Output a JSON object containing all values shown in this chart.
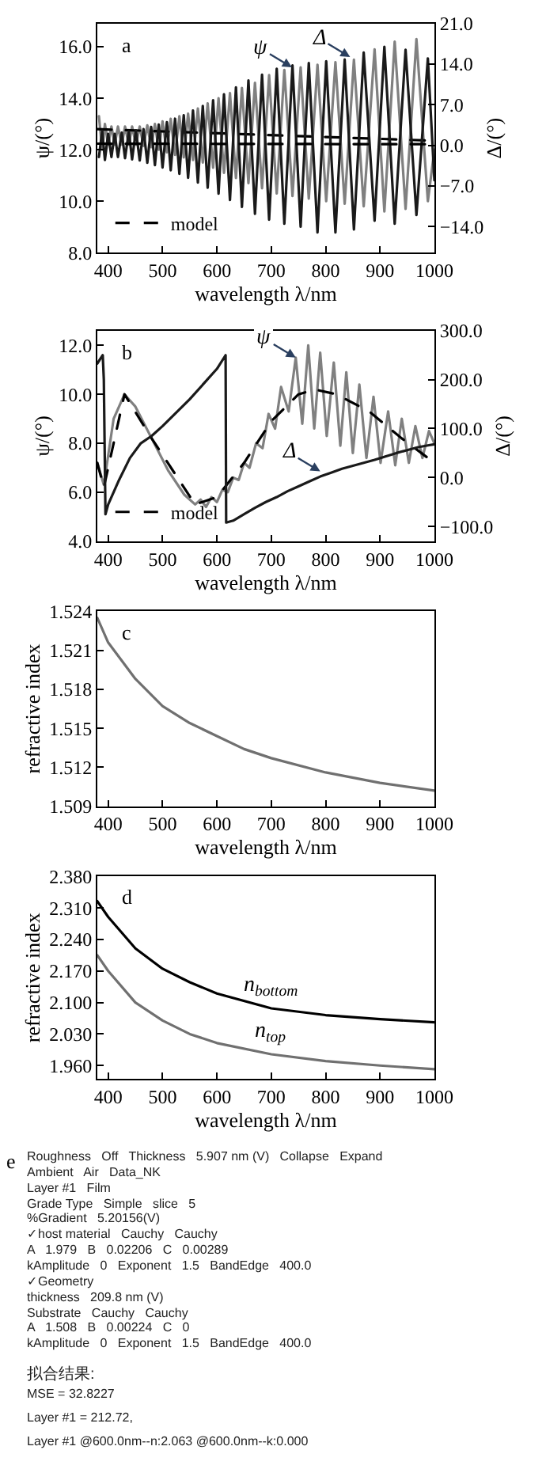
{
  "chart_data": [
    {
      "type": "line",
      "title": "a",
      "xlabel": "wavelength λ/nm",
      "ylabel": "ψ/(°)",
      "y2label": "Δ/(°)",
      "legend": "bottom left",
      "xlim": [
        380,
        1000
      ],
      "xticks": [
        400,
        500,
        600,
        700,
        800,
        900,
        1000
      ],
      "ylim": [
        8,
        16.9
      ],
      "yticks": [
        {
          "value": 8,
          "label": "8.0"
        },
        {
          "value": 10,
          "label": "10.0"
        },
        {
          "value": 12,
          "label": "12.0"
        },
        {
          "value": 14,
          "label": "14.0"
        },
        {
          "value": 16,
          "label": "16.0"
        }
      ],
      "y2lim": [
        -18.5,
        21
      ],
      "y2ticks": [
        {
          "value": -14,
          "label": "−14.0"
        },
        {
          "value": -7,
          "label": "−7.0"
        },
        {
          "value": 0,
          "label": "0.0"
        },
        {
          "value": 7,
          "label": "7.0"
        },
        {
          "value": 14,
          "label": "14.0"
        },
        {
          "value": 21,
          "label": "21.0"
        }
      ],
      "annotations": [
        {
          "text": "ψ",
          "x": 738,
          "y": 15.2
        },
        {
          "text": "Δ",
          "x": 845,
          "y": 15.6
        }
      ],
      "series": [
        {
          "color": "#808080",
          "line_style": "solid",
          "x": [
            383,
            389,
            394,
            400,
            406,
            412,
            418,
            425,
            431,
            438,
            444,
            451,
            458,
            465,
            472,
            479,
            486,
            493,
            500,
            508,
            515,
            523,
            531,
            539,
            547,
            556,
            565,
            574,
            583,
            593,
            603,
            613,
            624,
            635,
            646,
            658,
            670,
            683,
            696,
            710,
            724,
            739,
            754,
            769,
            785,
            801,
            818,
            835,
            852,
            870,
            890,
            908,
            927,
            947,
            967,
            988,
            1000
          ],
          "values": [
            13.3,
            12.0,
            13.0,
            12.2,
            12.9,
            12.2,
            12.9,
            12.2,
            12.9,
            12.2,
            12.9,
            12.2,
            12.9,
            12.15,
            12.95,
            12.1,
            13.0,
            12.0,
            13.1,
            11.9,
            13.2,
            11.8,
            13.3,
            11.7,
            13.4,
            11.6,
            13.6,
            11.5,
            13.8,
            11.3,
            14.0,
            11.1,
            14.2,
            10.9,
            14.4,
            10.7,
            14.6,
            10.5,
            14.9,
            10.3,
            15.1,
            10.2,
            15.2,
            10.1,
            15.3,
            10.0,
            15.4,
            9.9,
            15.5,
            9.8,
            15.9,
            9.6,
            16.2,
            9.7,
            16.3,
            10.0,
            12.0
          ]
        },
        {
          "color": "#1a1a1a",
          "line_style": "solid",
          "axis": "y2",
          "x": [
            383,
            389,
            394,
            400,
            406,
            412,
            418,
            425,
            431,
            438,
            444,
            451,
            458,
            465,
            472,
            479,
            486,
            493,
            500,
            508,
            515,
            523,
            531,
            539,
            547,
            556,
            565,
            574,
            583,
            593,
            603,
            613,
            624,
            635,
            646,
            658,
            670,
            683,
            696,
            710,
            724,
            739,
            754,
            769,
            785,
            801,
            818,
            835,
            852,
            870,
            890,
            908,
            927,
            947,
            967,
            988,
            1000
          ],
          "values": [
            -2.0,
            2.5,
            -2.5,
            2.0,
            -2.0,
            2.0,
            -2.0,
            2.2,
            -2.2,
            2.4,
            -2.4,
            2.6,
            -2.6,
            2.8,
            -3.0,
            3.2,
            -3.4,
            3.6,
            -3.8,
            4.0,
            -4.3,
            4.6,
            -4.9,
            5.2,
            -5.6,
            6.0,
            -6.4,
            6.8,
            -7.3,
            7.8,
            -8.3,
            8.8,
            -9.4,
            10.0,
            -10.6,
            11.2,
            -11.8,
            12.2,
            -12.8,
            13.2,
            -13.5,
            13.8,
            -14.0,
            14.2,
            -15.0,
            14.5,
            -15.0,
            14.8,
            -14.5,
            16.0,
            -13.0,
            17.0,
            -13.5,
            16.5,
            -12.0,
            15.0,
            -6.0
          ]
        },
        {
          "name": "model",
          "color": "#000000",
          "line_style": "dashed",
          "x": [
            380,
            1000
          ],
          "values": [
            12.8,
            12.35
          ]
        },
        {
          "color": "#000000",
          "line_style": "dashed",
          "axis": "y2",
          "x": [
            380,
            1000
          ],
          "values": [
            0.3,
            0.2
          ]
        }
      ]
    },
    {
      "type": "line",
      "title": "b",
      "xlabel": "wavelength λ/nm",
      "ylabel": "ψ/(°)",
      "y2label": "Δ/(°)",
      "legend": "bottom left",
      "xlim": [
        380,
        1000
      ],
      "xticks": [
        400,
        500,
        600,
        700,
        800,
        900,
        1000
      ],
      "ylim": [
        4,
        12.6
      ],
      "yticks": [
        {
          "value": 4,
          "label": "4.0"
        },
        {
          "value": 6,
          "label": "6.0"
        },
        {
          "value": 8,
          "label": "8.0"
        },
        {
          "value": 10,
          "label": "10.0"
        },
        {
          "value": 12,
          "label": "12.0"
        }
      ],
      "y2lim": [
        -130,
        300
      ],
      "y2ticks": [
        {
          "value": -100,
          "label": "−100.0"
        },
        {
          "value": 0,
          "label": "0.0"
        },
        {
          "value": 100,
          "label": "100.0"
        },
        {
          "value": 200,
          "label": "200.0"
        },
        {
          "value": 300,
          "label": "300.0"
        }
      ],
      "annotations": [
        {
          "text": "ψ",
          "x": 745,
          "y": 11.5
        },
        {
          "text": "Δ",
          "x": 790,
          "y": 6.85
        }
      ],
      "series": [
        {
          "color": "#808080",
          "line_style": "solid",
          "x": [
            380,
            392,
            410,
            430,
            450,
            480,
            510,
            540,
            560,
            570,
            580,
            590,
            600,
            610,
            620,
            630,
            640,
            650,
            660,
            672,
            684,
            695,
            707,
            718,
            732,
            745,
            757,
            768,
            779,
            790,
            802,
            815,
            827,
            838,
            850,
            862,
            875,
            888,
            901,
            915,
            928,
            940,
            953,
            965,
            978,
            990,
            1000
          ],
          "values": [
            7.2,
            6.3,
            9.0,
            10.0,
            9.5,
            8.2,
            6.9,
            5.9,
            5.5,
            5.7,
            5.4,
            5.8,
            5.6,
            6.1,
            6.0,
            6.6,
            6.5,
            7.2,
            7.0,
            8.0,
            7.8,
            9.2,
            8.6,
            10.3,
            9.3,
            11.5,
            8.8,
            12.0,
            8.6,
            11.7,
            8.3,
            11.3,
            7.9,
            10.9,
            7.6,
            10.4,
            7.4,
            9.9,
            7.2,
            9.3,
            7.1,
            9.0,
            7.2,
            8.7,
            7.4,
            8.5,
            8.0
          ]
        },
        {
          "color": "#1a1a1a",
          "line_style": "solid",
          "axis": "y2",
          "x": [
            380,
            390,
            392,
            395,
            400,
            420,
            440,
            460,
            480,
            500,
            550,
            600,
            616,
            617,
            630,
            650,
            670,
            690,
            710,
            730,
            750,
            770,
            790,
            810,
            830,
            850,
            870,
            890,
            910,
            930,
            950,
            970,
            990,
            1000
          ],
          "values": [
            233,
            250,
            200,
            -75,
            -55,
            -5,
            40,
            70,
            85,
            105,
            160,
            222,
            250,
            -92,
            -88,
            -75,
            -62,
            -50,
            -40,
            -28,
            -18,
            -8,
            2,
            10,
            18,
            24,
            30,
            36,
            43,
            50,
            56,
            62,
            66,
            68
          ]
        },
        {
          "name": "model",
          "color": "#000000",
          "line_style": "dashed",
          "x": [
            380,
            392,
            430,
            480,
            560,
            600,
            650,
            700,
            750,
            780,
            820,
            880,
            940,
            1000
          ],
          "values": [
            7.2,
            6.2,
            10.0,
            8.2,
            5.5,
            5.8,
            7.2,
            8.9,
            10.0,
            10.2,
            10.0,
            9.3,
            8.2,
            7.2
          ]
        }
      ]
    },
    {
      "type": "line",
      "title": "c",
      "xlabel": "wavelength λ/nm",
      "ylabel": "refractive index",
      "xlim": [
        380,
        1000
      ],
      "xticks": [
        400,
        500,
        600,
        700,
        800,
        900,
        1000
      ],
      "ylim": [
        1.509,
        1.524
      ],
      "yticks": [
        {
          "value": 1.509,
          "label": "1.509"
        },
        {
          "value": 1.512,
          "label": "1.512"
        },
        {
          "value": 1.515,
          "label": "1.515"
        },
        {
          "value": 1.518,
          "label": "1.518"
        },
        {
          "value": 1.521,
          "label": "1.521"
        },
        {
          "value": 1.524,
          "label": "1.524"
        }
      ],
      "series": [
        {
          "color": "#707070",
          "line_style": "solid",
          "x": [
            380,
            400,
            450,
            500,
            550,
            600,
            650,
            700,
            800,
            900,
            1000
          ],
          "values": [
            1.5235,
            1.5216,
            1.5188,
            1.5167,
            1.5154,
            1.5144,
            1.5134,
            1.5127,
            1.5116,
            1.5108,
            1.5102
          ]
        }
      ]
    },
    {
      "type": "line",
      "title": "d",
      "xlabel": "wavelength λ/nm",
      "ylabel": "refractive index",
      "legend": false,
      "xlim": [
        380,
        1000
      ],
      "xticks": [
        400,
        500,
        600,
        700,
        800,
        900,
        1000
      ],
      "ylim": [
        1.93,
        2.38
      ],
      "yticks": [
        {
          "value": 1.96,
          "label": "1.960"
        },
        {
          "value": 2.03,
          "label": "2.030"
        },
        {
          "value": 2.1,
          "label": "2.100"
        },
        {
          "value": 2.17,
          "label": "2.170"
        },
        {
          "value": 2.24,
          "label": "2.240"
        },
        {
          "value": 2.31,
          "label": "2.310"
        },
        {
          "value": 2.38,
          "label": "2.380"
        }
      ],
      "series": [
        {
          "name": "n$_{bottom}$",
          "color": "#000000",
          "line_style": "solid",
          "x": [
            380,
            400,
            450,
            500,
            550,
            600,
            700,
            800,
            900,
            1000
          ],
          "values": [
            2.325,
            2.29,
            2.22,
            2.175,
            2.145,
            2.12,
            2.087,
            2.072,
            2.063,
            2.056
          ]
        },
        {
          "name": "n$_{top}$",
          "color": "#707070",
          "line_style": "solid",
          "x": [
            380,
            400,
            450,
            500,
            550,
            600,
            700,
            800,
            900,
            1000
          ],
          "values": [
            2.205,
            2.17,
            2.1,
            2.06,
            2.03,
            2.01,
            1.985,
            1.97,
            1.96,
            1.952
          ]
        }
      ]
    },
    {
      "type": "other",
      "title": "e",
      "annotations": [
        "Roughness   Off   Thickness   5.907 nm (V)   Collapse   Expand",
        "Ambient   Air   Data_NK",
        "Layer #1   Film",
        "Grade Type   Simple   slice   5",
        "%Gradient   5.20156(V)",
        "✓host material   Cauchy   Cauchy",
        "A   1.979   B   0.02206   C   0.00289",
        "kAmplitude   0   Exponent   1.5   BandEdge   400.0",
        "✓Geometry",
        "thickness   209.8 nm (V)",
        "Substrate   Cauchy   Cauchy",
        "A   1.508   B   0.00224   C   0",
        "kAmplitude   0   Exponent   1.5   BandEdge   400.0"
      ]
    },
    {
      "type": "other",
      "annotations": [
        "拟合结果:",
        "MSE = 32.8227",
        "Layer #1 = 212.72,",
        "Layer #1 @600.0nm--n:2.063 @600.0nm--k:0.000"
      ]
    }
  ]
}
